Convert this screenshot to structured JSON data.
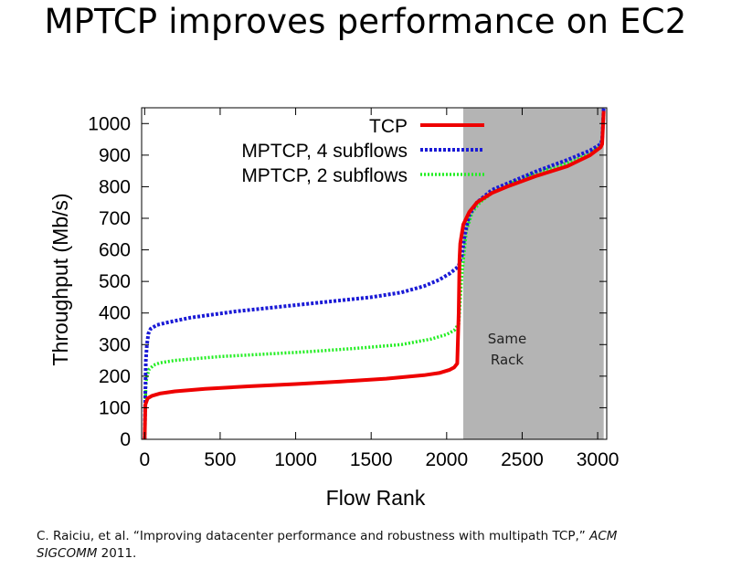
{
  "slide": {
    "title": "MPTCP improves performance on EC2",
    "citation": {
      "prefix": "C. Raiciu, et al. “Improving datacenter performance and robustness with multipath TCP,”",
      "venue_part1": "ACM",
      "venue_part2": "SIGCOMM",
      "year": "2011."
    }
  },
  "colors": {
    "tcp": "#ee0000",
    "mptcp4": "#1a1ad6",
    "mptcp2": "#22ee22",
    "shaded_region": "#b4b4b4"
  },
  "chart_data": {
    "type": "line",
    "title": "",
    "xlabel": "Flow Rank",
    "ylabel": "Throughput (Mb/s)",
    "xlim": [
      -20,
      3060
    ],
    "ylim": [
      0,
      1050
    ],
    "xticks": [
      0,
      500,
      1000,
      1500,
      2000,
      2500,
      3000
    ],
    "yticks": [
      0,
      100,
      200,
      300,
      400,
      500,
      600,
      700,
      800,
      900,
      1000
    ],
    "grid": false,
    "legend_position": "top-left",
    "shaded_region": {
      "x_start": 2110,
      "x_end": 3040,
      "label_line1": "Same",
      "label_line2": "Rack"
    },
    "series": [
      {
        "name": "TCP",
        "style": "solid",
        "x": [
          0,
          5,
          20,
          50,
          100,
          200,
          400,
          700,
          1000,
          1300,
          1600,
          1850,
          1950,
          2020,
          2050,
          2070,
          2080,
          2085,
          2090,
          2110,
          2150,
          2200,
          2300,
          2400,
          2600,
          2800,
          2950,
          3020,
          3030,
          3035,
          3040
        ],
        "y": [
          0,
          110,
          130,
          138,
          145,
          152,
          160,
          168,
          175,
          183,
          192,
          203,
          210,
          220,
          228,
          240,
          400,
          570,
          620,
          680,
          720,
          750,
          780,
          800,
          835,
          865,
          900,
          925,
          935,
          990,
          1040
        ]
      },
      {
        "name": "MPTCP, 4 subflows",
        "style": "dashed",
        "x": [
          0,
          3,
          8,
          15,
          25,
          40,
          80,
          150,
          300,
          600,
          900,
          1200,
          1500,
          1700,
          1850,
          1950,
          2020,
          2060,
          2080,
          2100,
          2120,
          2150,
          2200,
          2300,
          2400,
          2600,
          2800,
          2950,
          3020,
          3030,
          3035,
          3040
        ],
        "y": [
          0,
          100,
          250,
          300,
          335,
          350,
          362,
          370,
          385,
          405,
          420,
          435,
          450,
          465,
          485,
          505,
          525,
          540,
          550,
          580,
          650,
          710,
          750,
          790,
          810,
          850,
          885,
          915,
          935,
          950,
          1000,
          1050
        ]
      },
      {
        "name": "MPTCP, 2 subflows",
        "style": "dotted",
        "x": [
          0,
          3,
          8,
          15,
          30,
          60,
          100,
          200,
          500,
          800,
          1100,
          1400,
          1700,
          1900,
          2000,
          2050,
          2080,
          2100,
          2130,
          2170,
          2220,
          2300,
          2400,
          2600,
          2800,
          2950,
          3020,
          3030,
          3035,
          3040
        ],
        "y": [
          0,
          80,
          170,
          200,
          222,
          235,
          242,
          250,
          262,
          270,
          278,
          288,
          300,
          318,
          332,
          345,
          365,
          520,
          660,
          720,
          750,
          780,
          805,
          845,
          875,
          905,
          930,
          945,
          1000,
          1050
        ]
      }
    ]
  }
}
